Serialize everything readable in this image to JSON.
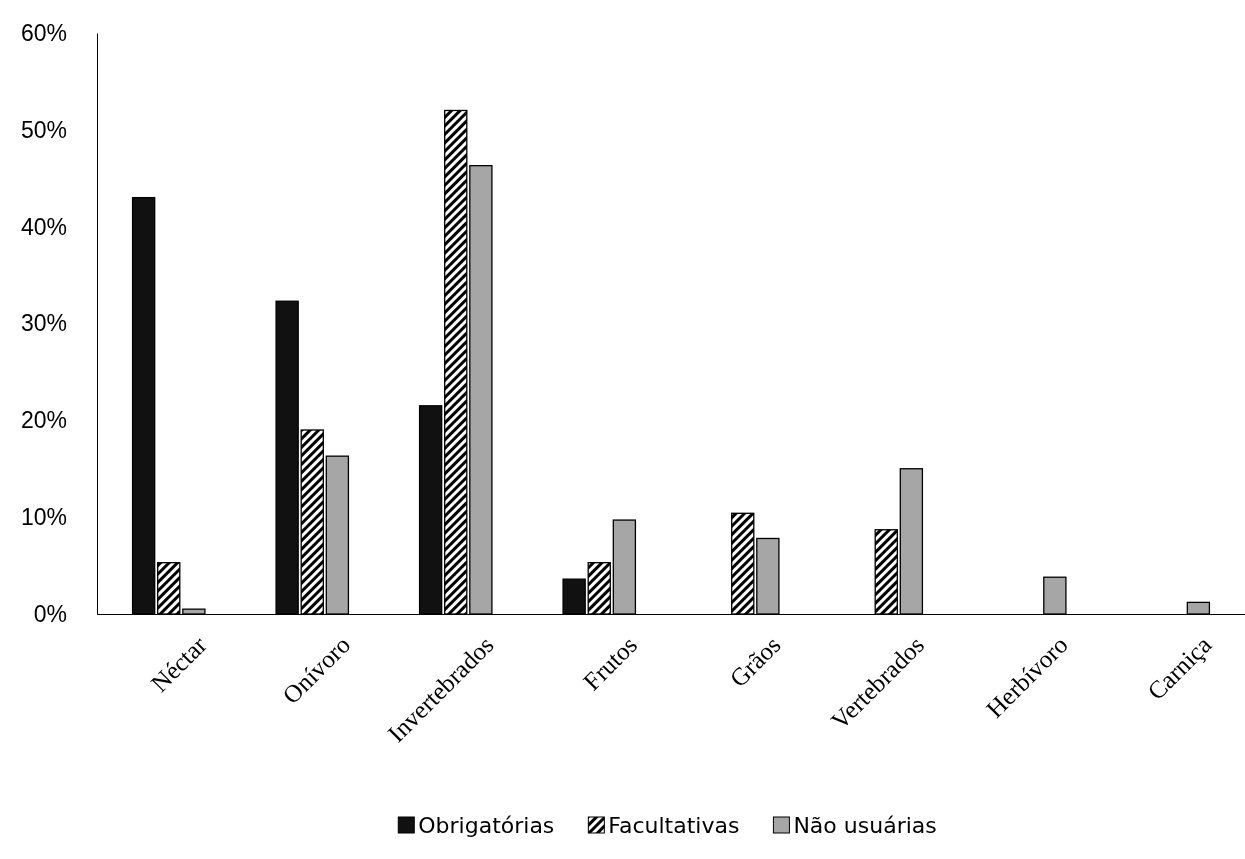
{
  "chart_data": {
    "type": "bar",
    "categories": [
      "Néctar",
      "Onívoro",
      "Invertebrados",
      "Frutos",
      "Grãos",
      "Vertebrados",
      "Herbívoro",
      "Carniça"
    ],
    "series": [
      {
        "name": "Obrigatórias",
        "color": "#111111",
        "values": [
          43,
          32.3,
          21.5,
          3.6,
          0,
          0,
          0,
          0
        ]
      },
      {
        "name": "Facultativas",
        "color": "#000000",
        "values": [
          5.3,
          19,
          52,
          5.3,
          10.4,
          8.7,
          0,
          0
        ]
      },
      {
        "name": "Não usuárias",
        "color": "#a6a6a6",
        "values": [
          0.5,
          16.3,
          46.3,
          9.7,
          7.8,
          15,
          3.8,
          1.2
        ]
      }
    ],
    "ylim": [
      0,
      60
    ],
    "yticks": [
      {
        "value": 0,
        "label": "0%"
      },
      {
        "value": 10,
        "label": "10%"
      },
      {
        "value": 20,
        "label": "20%"
      },
      {
        "value": 30,
        "label": "30%"
      },
      {
        "value": 40,
        "label": "40%"
      },
      {
        "value": 50,
        "label": "50%"
      },
      {
        "value": 60,
        "label": "60%"
      }
    ],
    "grid": false,
    "legend": "bottom"
  }
}
